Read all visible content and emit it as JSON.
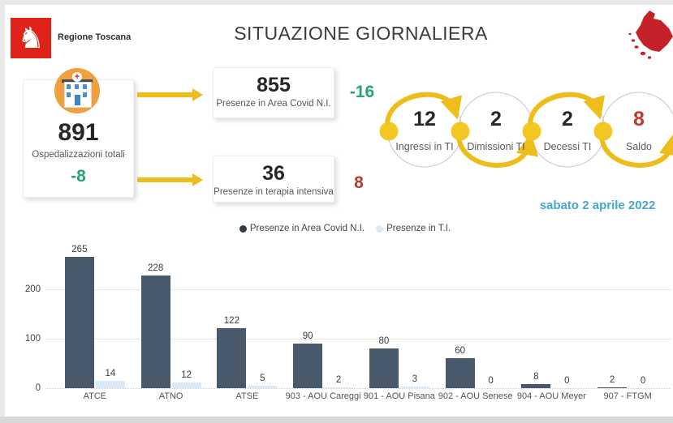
{
  "header": {
    "logo_text": "Regione Toscana",
    "title": "SITUAZIONE GIORNALIERA"
  },
  "summary": {
    "total": {
      "value": "891",
      "label": "Ospedalizzazioni totali",
      "delta": "-8"
    },
    "covid_area": {
      "value": "855",
      "label": "Presenze in Area Covid N.I.",
      "delta": "-16"
    },
    "intensive_care": {
      "value": "36",
      "label": "Presenze in terapia intensiva",
      "delta": "8"
    }
  },
  "flow": {
    "steps": [
      {
        "value": "12",
        "label": "Ingressi in TI"
      },
      {
        "value": "2",
        "label": "Dimissioni TI"
      },
      {
        "value": "2",
        "label": "Decessi TI"
      },
      {
        "value": "8",
        "label": "Saldo"
      }
    ],
    "date": "sabato 2 aprile 2022"
  },
  "chart_data": {
    "type": "bar",
    "title": "",
    "categories": [
      "ATCE",
      "ATNO",
      "ATSE",
      "903 - AOU Careggi",
      "901 - AOU Pisana",
      "902 - AOU Senese",
      "904 - AOU Meyer",
      "907 - FTGM"
    ],
    "series": [
      {
        "name": "Presenze in Area Covid N.I.",
        "color": "#47596a",
        "values": [
          265,
          228,
          122,
          90,
          80,
          60,
          8,
          2
        ]
      },
      {
        "name": "Presenze in T.I.",
        "color": "#d9e9f6",
        "values": [
          14,
          12,
          5,
          2,
          3,
          0,
          0,
          0
        ]
      }
    ],
    "xlabel": "",
    "ylabel": "",
    "ylim": [
      0,
      300
    ],
    "yticks": [
      0,
      100,
      200
    ],
    "grid": "dotted-horizontal",
    "legend_position": "top-center"
  },
  "colors": {
    "logo_red": "#df2318",
    "map_red": "#c42129",
    "accent_yellow": "#efbd1b",
    "positive_green": "#29a17a",
    "negative_red": "#b93a2b",
    "date_blue": "#45a7cf",
    "bar_dark": "#47596a",
    "bar_light": "#d9e9f6"
  }
}
